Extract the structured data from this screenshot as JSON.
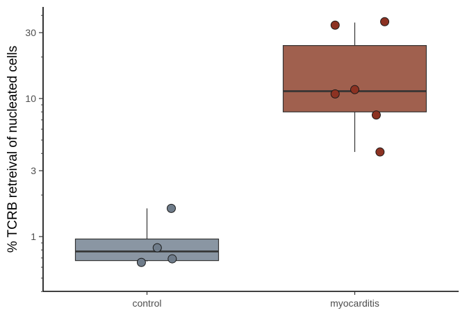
{
  "chart_data": {
    "type": "box",
    "title": "",
    "xlabel": "",
    "ylabel": "% TCRB retreival of nucleated cells",
    "y_scale": "log10",
    "ylim": [
      0.4,
      42
    ],
    "y_ticks": [
      1,
      3,
      10,
      30
    ],
    "y_tick_labels": [
      "1",
      "3",
      "10",
      "30"
    ],
    "grid": false,
    "legend": "none",
    "categories": [
      "control",
      "myocarditis"
    ],
    "boxes": [
      {
        "category": "control",
        "fill": "#8a96a3",
        "whisker_low": 0.66,
        "q1": 0.67,
        "median": 0.78,
        "q3": 0.96,
        "whisker_high": 1.6
      },
      {
        "category": "myocarditis",
        "fill": "#a0604e",
        "whisker_low": 4.1,
        "q1": 8.0,
        "median": 11.3,
        "q3": 24.2,
        "whisker_high": 35.5
      }
    ],
    "points": [
      {
        "category": "control",
        "jitter": 0.26,
        "y": 1.6
      },
      {
        "category": "control",
        "jitter": 0.11,
        "y": 0.83
      },
      {
        "category": "control",
        "jitter": 0.27,
        "y": 0.69
      },
      {
        "category": "control",
        "jitter": -0.06,
        "y": 0.65
      },
      {
        "category": "myocarditis",
        "jitter": -0.21,
        "y": 34.0
      },
      {
        "category": "myocarditis",
        "jitter": 0.32,
        "y": 36.0
      },
      {
        "category": "myocarditis",
        "jitter": -0.21,
        "y": 10.8
      },
      {
        "category": "myocarditis",
        "jitter": 0.0,
        "y": 11.6
      },
      {
        "category": "myocarditis",
        "jitter": 0.23,
        "y": 7.6
      },
      {
        "category": "myocarditis",
        "jitter": 0.27,
        "y": 4.1
      }
    ],
    "point_colors": {
      "control": "#6f7c8a",
      "myocarditis": "#8c3222"
    }
  }
}
